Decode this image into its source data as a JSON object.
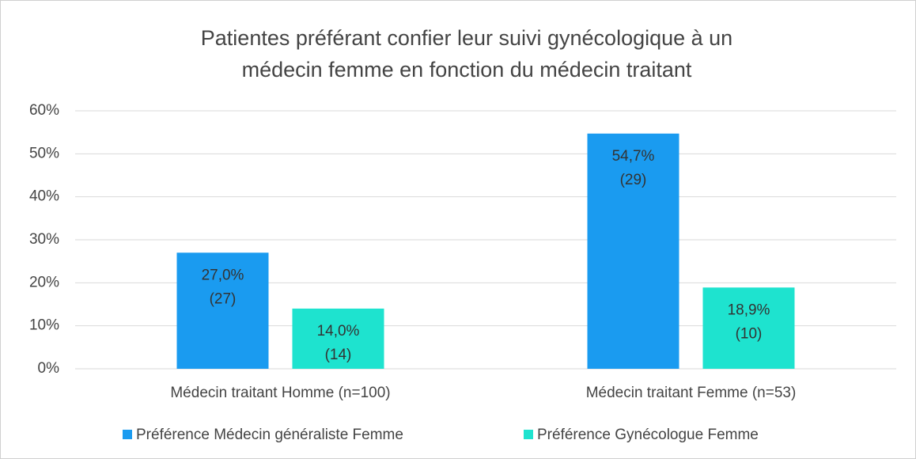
{
  "chart_data": {
    "type": "bar",
    "title": [
      "Patientes préférant confier leur suivi gynécologique à un",
      "médecin femme en fonction du médecin traitant"
    ],
    "categories": [
      "Médecin traitant Homme (n=100)",
      "Médecin traitant Femme (n=53)"
    ],
    "series": [
      {
        "name": "Préférence Médecin généraliste Femme",
        "color": "#1a9bf0",
        "values": [
          27.0,
          54.7
        ],
        "value_labels": [
          "27,0%",
          "54,7%"
        ],
        "count_labels": [
          "(27)",
          "(29)"
        ]
      },
      {
        "name": "Préférence Gynécologue Femme",
        "color": "#1ee3cf",
        "values": [
          14.0,
          18.9
        ],
        "value_labels": [
          "14,0%",
          "18,9%"
        ],
        "count_labels": [
          "(14)",
          "(10)"
        ]
      }
    ],
    "ylim": [
      0,
      60
    ],
    "yticks": [
      {
        "value": 0,
        "label": "0%"
      },
      {
        "value": 10,
        "label": "10%"
      },
      {
        "value": 20,
        "label": "20%"
      },
      {
        "value": 30,
        "label": "30%"
      },
      {
        "value": 40,
        "label": "40%"
      },
      {
        "value": 50,
        "label": "50%"
      },
      {
        "value": 60,
        "label": "60%"
      }
    ],
    "grid": true,
    "legend": "bottom"
  }
}
